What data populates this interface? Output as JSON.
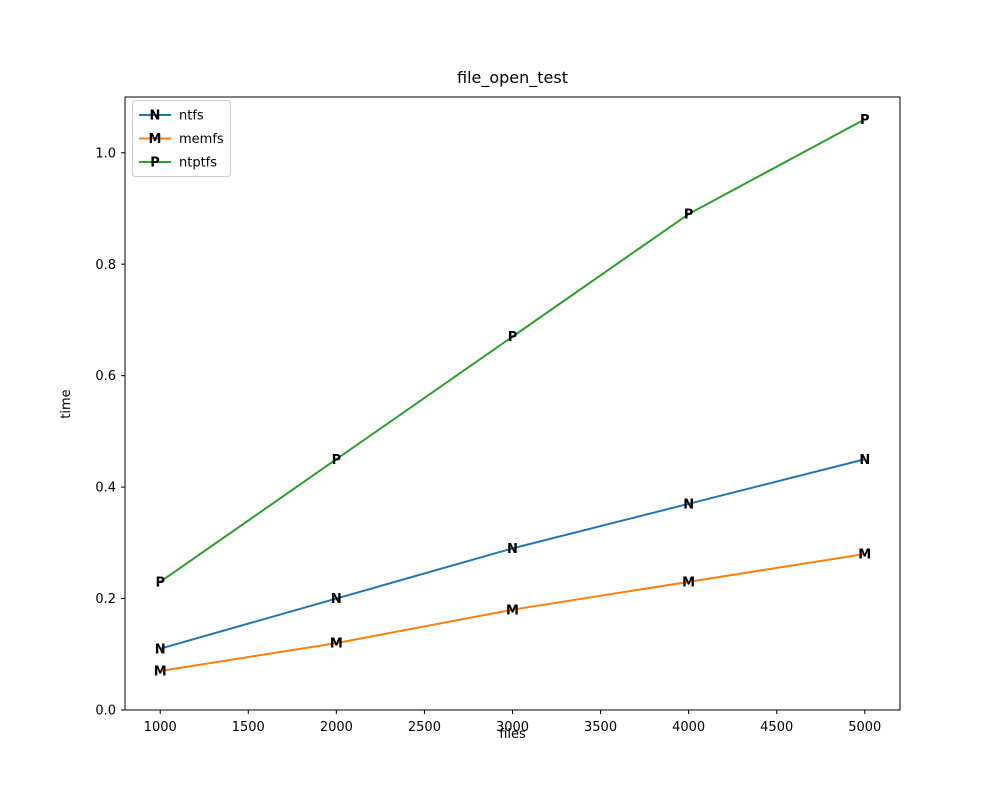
{
  "window": {
    "background": "#ffffff"
  },
  "chart_data": {
    "type": "line",
    "title": "file_open_test",
    "xlabel": "files",
    "ylabel": "time",
    "x": [
      1000,
      2000,
      3000,
      4000,
      5000
    ],
    "series": [
      {
        "name": "ntfs",
        "color": "#1f77b4",
        "marker": "N",
        "values": [
          0.11,
          0.2,
          0.29,
          0.37,
          0.45
        ]
      },
      {
        "name": "memfs",
        "color": "#ff7f0e",
        "marker": "M",
        "values": [
          0.07,
          0.12,
          0.18,
          0.23,
          0.28
        ]
      },
      {
        "name": "ntptfs",
        "color": "#2ca02c",
        "marker": "P",
        "values": [
          0.23,
          0.45,
          0.67,
          0.89,
          1.06
        ]
      }
    ],
    "xlim": [
      800,
      5200
    ],
    "ylim": [
      0,
      1.1
    ],
    "xticks": [
      1000,
      1500,
      2000,
      2500,
      3000,
      3500,
      4000,
      4500,
      5000
    ],
    "yticks": [
      0.0,
      0.2,
      0.4,
      0.6,
      0.8,
      1.0
    ],
    "x_tick_labels": [
      "1000",
      "1500",
      "2000",
      "2500",
      "3000",
      "3500",
      "4000",
      "4500",
      "5000"
    ],
    "y_tick_labels": [
      "0.0",
      "0.2",
      "0.4",
      "0.6",
      "0.8",
      "1.0"
    ],
    "legend_position": "upper left",
    "grid": false,
    "axis_color": "#000000",
    "legend_border_color": "#cccccc",
    "legend_background": "#ffffff"
  }
}
